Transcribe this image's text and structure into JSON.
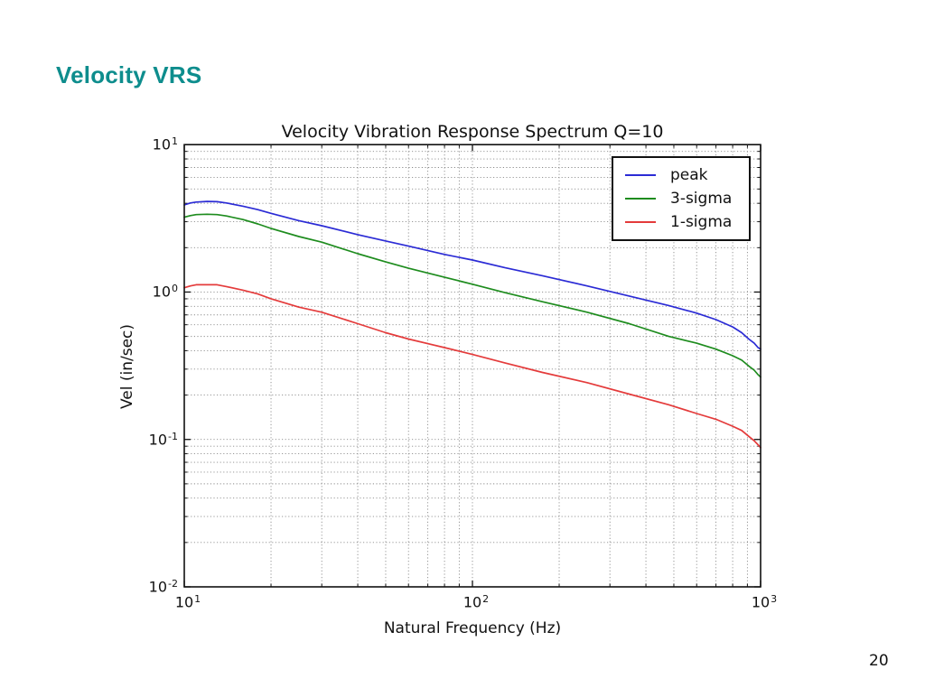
{
  "slide": {
    "title": "Velocity VRS",
    "page_number": "20",
    "accent_color": "#0E8D8D",
    "background_color": "#FFFFFF"
  },
  "chart_data": {
    "type": "line",
    "title": "Velocity Vibration Response Spectrum Q=10",
    "xlabel": "Natural Frequency (Hz)",
    "ylabel": "Vel (in/sec)",
    "x_scale": "log",
    "y_scale": "log",
    "xlim": [
      10,
      1000
    ],
    "ylim": [
      0.01,
      10
    ],
    "grid": "both, dotted",
    "legend_position": "upper right",
    "grid_color": "#8a8a8a",
    "spine_color": "#111111",
    "x_ticks": [
      {
        "base": "10",
        "exp": "1",
        "value": 10
      },
      {
        "base": "10",
        "exp": "2",
        "value": 100
      },
      {
        "base": "10",
        "exp": "3",
        "value": 1000
      }
    ],
    "y_ticks": [
      {
        "base": "10",
        "exp": "1",
        "value": 10
      },
      {
        "base": "10",
        "exp": "0",
        "value": 1
      },
      {
        "base": "10",
        "exp": "-1",
        "value": 0.1
      },
      {
        "base": "10",
        "exp": "-2",
        "value": 0.01
      }
    ],
    "x": [
      10,
      10.5,
      11,
      12,
      13,
      14,
      16,
      18,
      20,
      25,
      30,
      40,
      50,
      60,
      80,
      100,
      130,
      175,
      250,
      350,
      480,
      600,
      700,
      800,
      860,
      910,
      950,
      980,
      1000
    ],
    "series": [
      {
        "name": "peak",
        "color": "#2b2bd5",
        "values": [
          3.9,
          4.02,
          4.08,
          4.12,
          4.1,
          4.02,
          3.82,
          3.62,
          3.42,
          3.05,
          2.82,
          2.45,
          2.22,
          2.05,
          1.8,
          1.65,
          1.46,
          1.29,
          1.1,
          0.94,
          0.81,
          0.72,
          0.65,
          0.58,
          0.53,
          0.48,
          0.45,
          0.42,
          0.41
        ]
      },
      {
        "name": "3-sigma",
        "color": "#1e8c1e",
        "values": [
          3.22,
          3.3,
          3.35,
          3.37,
          3.35,
          3.28,
          3.1,
          2.9,
          2.7,
          2.38,
          2.18,
          1.82,
          1.6,
          1.45,
          1.26,
          1.13,
          0.99,
          0.86,
          0.73,
          0.61,
          0.5,
          0.45,
          0.41,
          0.37,
          0.345,
          0.315,
          0.295,
          0.275,
          0.265
        ]
      },
      {
        "name": "1-sigma",
        "color": "#e43b3b",
        "values": [
          1.07,
          1.1,
          1.12,
          1.12,
          1.12,
          1.09,
          1.03,
          0.97,
          0.9,
          0.79,
          0.73,
          0.61,
          0.53,
          0.48,
          0.42,
          0.377,
          0.33,
          0.285,
          0.243,
          0.203,
          0.172,
          0.15,
          0.137,
          0.123,
          0.115,
          0.105,
          0.098,
          0.092,
          0.088
        ]
      }
    ]
  }
}
